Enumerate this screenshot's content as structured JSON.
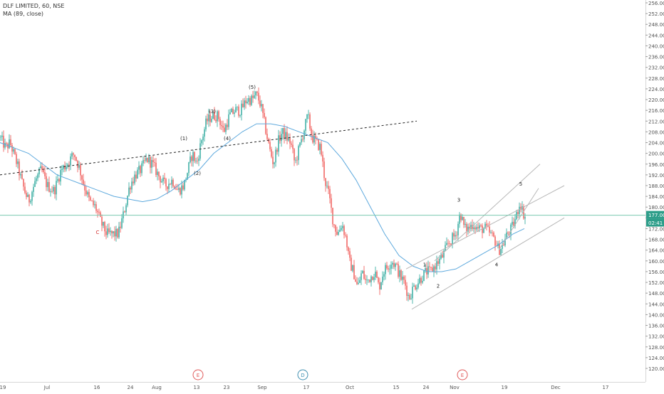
{
  "header": {
    "symbol_line": "DLF LIMITED, 60, NSE",
    "indicator_line": "MA (89, close)"
  },
  "colors": {
    "up": "#26a69a",
    "down": "#ef5350",
    "ma": "#5ea9dd",
    "price_line": "#79c9b0",
    "price_tag": "#2e9e8a",
    "axis_text": "#555555",
    "wave_label": "#222222",
    "c_label": "#d32f2f",
    "event_e": "#e05a5a",
    "event_d": "#3f8fb0",
    "trendline": "#222222",
    "channel": "#b8b8b8"
  },
  "chart_data": {
    "type": "candlestick",
    "title": "DLF LIMITED, 60, NSE",
    "indicator": "MA (89, close)",
    "y_axis": {
      "min": 116,
      "max": 256,
      "ticks": [
        120,
        124,
        128,
        132,
        136,
        140,
        144,
        148,
        152,
        156,
        160,
        164,
        168,
        172,
        176,
        180,
        184,
        188,
        192,
        196,
        200,
        204,
        208,
        212,
        216,
        220,
        224,
        228,
        232,
        236,
        240,
        244,
        248,
        252,
        256
      ]
    },
    "x_axis_labels": [
      "19",
      "Jul",
      "16",
      "24",
      "Aug",
      "13",
      "23",
      "Sep",
      "17",
      "Oct",
      "15",
      "24",
      "Nov",
      "19",
      "Dec",
      "17"
    ],
    "last_price": "177.00",
    "countdown": "02:41",
    "wave_labels": [
      "(1)",
      "(2)",
      "(3)",
      "(4)",
      "(5)",
      "C",
      "1",
      "2",
      "3",
      "4",
      "5"
    ],
    "events": [
      "E",
      "D",
      "E"
    ],
    "anchor_points": [
      [
        0,
        206
      ],
      [
        8,
        202
      ],
      [
        14,
        204
      ],
      [
        24,
        196
      ],
      [
        32,
        188
      ],
      [
        40,
        182
      ],
      [
        50,
        190
      ],
      [
        58,
        194
      ],
      [
        66,
        188
      ],
      [
        76,
        186
      ],
      [
        86,
        194
      ],
      [
        94,
        196
      ],
      [
        104,
        200
      ],
      [
        112,
        194
      ],
      [
        118,
        188
      ],
      [
        126,
        182
      ],
      [
        134,
        180
      ],
      [
        142,
        174
      ],
      [
        150,
        170
      ],
      [
        158,
        170
      ],
      [
        166,
        170
      ],
      [
        174,
        178
      ],
      [
        182,
        188
      ],
      [
        190,
        192
      ],
      [
        198,
        194
      ],
      [
        206,
        198
      ],
      [
        214,
        196
      ],
      [
        222,
        192
      ],
      [
        232,
        188
      ],
      [
        242,
        190
      ],
      [
        250,
        186
      ],
      [
        258,
        188
      ],
      [
        264,
        194
      ],
      [
        270,
        200
      ],
      [
        276,
        196
      ],
      [
        282,
        204
      ],
      [
        290,
        212
      ],
      [
        298,
        214
      ],
      [
        306,
        214
      ],
      [
        314,
        208
      ],
      [
        322,
        214
      ],
      [
        330,
        216
      ],
      [
        338,
        216
      ],
      [
        346,
        220
      ],
      [
        354,
        220
      ],
      [
        360,
        222
      ],
      [
        366,
        218
      ],
      [
        372,
        210
      ],
      [
        378,
        202
      ],
      [
        384,
        196
      ],
      [
        390,
        204
      ],
      [
        396,
        208
      ],
      [
        402,
        206
      ],
      [
        408,
        204
      ],
      [
        414,
        196
      ],
      [
        420,
        202
      ],
      [
        426,
        208
      ],
      [
        432,
        214
      ],
      [
        438,
        206
      ],
      [
        444,
        204
      ],
      [
        450,
        202
      ],
      [
        456,
        190
      ],
      [
        462,
        184
      ],
      [
        468,
        174
      ],
      [
        474,
        170
      ],
      [
        480,
        174
      ],
      [
        486,
        168
      ],
      [
        490,
        160
      ],
      [
        496,
        156
      ],
      [
        502,
        150
      ],
      [
        508,
        156
      ],
      [
        514,
        152
      ],
      [
        520,
        154
      ],
      [
        526,
        156
      ],
      [
        532,
        150
      ],
      [
        538,
        156
      ],
      [
        544,
        158
      ],
      [
        550,
        160
      ],
      [
        556,
        158
      ],
      [
        562,
        154
      ],
      [
        568,
        152
      ],
      [
        574,
        146
      ],
      [
        580,
        150
      ],
      [
        586,
        152
      ],
      [
        592,
        154
      ],
      [
        598,
        156
      ],
      [
        604,
        156
      ],
      [
        610,
        158
      ],
      [
        616,
        160
      ],
      [
        622,
        162
      ],
      [
        628,
        166
      ],
      [
        634,
        168
      ],
      [
        640,
        170
      ],
      [
        646,
        178
      ],
      [
        652,
        172
      ],
      [
        658,
        172
      ],
      [
        664,
        174
      ],
      [
        670,
        172
      ],
      [
        676,
        172
      ],
      [
        682,
        172
      ],
      [
        688,
        170
      ],
      [
        694,
        168
      ],
      [
        700,
        164
      ],
      [
        706,
        166
      ],
      [
        712,
        170
      ],
      [
        718,
        172
      ],
      [
        724,
        176
      ],
      [
        730,
        182
      ],
      [
        734,
        178
      ],
      [
        738,
        176
      ]
    ],
    "ma_points": [
      [
        0,
        204
      ],
      [
        20,
        202
      ],
      [
        40,
        200
      ],
      [
        60,
        196
      ],
      [
        80,
        192
      ],
      [
        100,
        190
      ],
      [
        120,
        188
      ],
      [
        140,
        186
      ],
      [
        160,
        184
      ],
      [
        180,
        183
      ],
      [
        200,
        182
      ],
      [
        220,
        183
      ],
      [
        240,
        186
      ],
      [
        260,
        190
      ],
      [
        280,
        194
      ],
      [
        300,
        200
      ],
      [
        320,
        204
      ],
      [
        340,
        208
      ],
      [
        360,
        211
      ],
      [
        380,
        211
      ],
      [
        400,
        210
      ],
      [
        420,
        208
      ],
      [
        440,
        206
      ],
      [
        460,
        204
      ],
      [
        480,
        198
      ],
      [
        500,
        190
      ],
      [
        520,
        180
      ],
      [
        540,
        170
      ],
      [
        560,
        162
      ],
      [
        580,
        158
      ],
      [
        600,
        156
      ],
      [
        620,
        156
      ],
      [
        640,
        157
      ],
      [
        660,
        160
      ],
      [
        680,
        163
      ],
      [
        700,
        166
      ],
      [
        720,
        170
      ],
      [
        736,
        172
      ]
    ],
    "dotted_trendline": [
      [
        0,
        192
      ],
      [
        585,
        212
      ]
    ],
    "channel_lines": [
      [
        [
          578,
          142
        ],
        [
          792,
          176
        ]
      ],
      [
        [
          570,
          157
        ],
        [
          792,
          188
        ]
      ],
      [
        [
          610,
          160
        ],
        [
          758,
          196
        ]
      ],
      [
        [
          700,
          164
        ],
        [
          756,
          187
        ]
      ]
    ],
    "wave_label_positions": [
      [
        "(1)",
        258,
        205
      ],
      [
        "(2)",
        277,
        192
      ],
      [
        "(3)",
        298,
        215
      ],
      [
        "(4)",
        319,
        205
      ],
      [
        "(5)",
        354,
        224
      ],
      [
        "C",
        137,
        170
      ],
      [
        "1",
        596,
        158
      ],
      [
        "2",
        615,
        150
      ],
      [
        "3",
        644,
        182
      ],
      [
        "4",
        697,
        158
      ],
      [
        "5",
        731,
        188
      ]
    ],
    "event_positions": [
      [
        "E",
        278
      ],
      [
        "D",
        425
      ],
      [
        "E",
        649
      ]
    ]
  }
}
